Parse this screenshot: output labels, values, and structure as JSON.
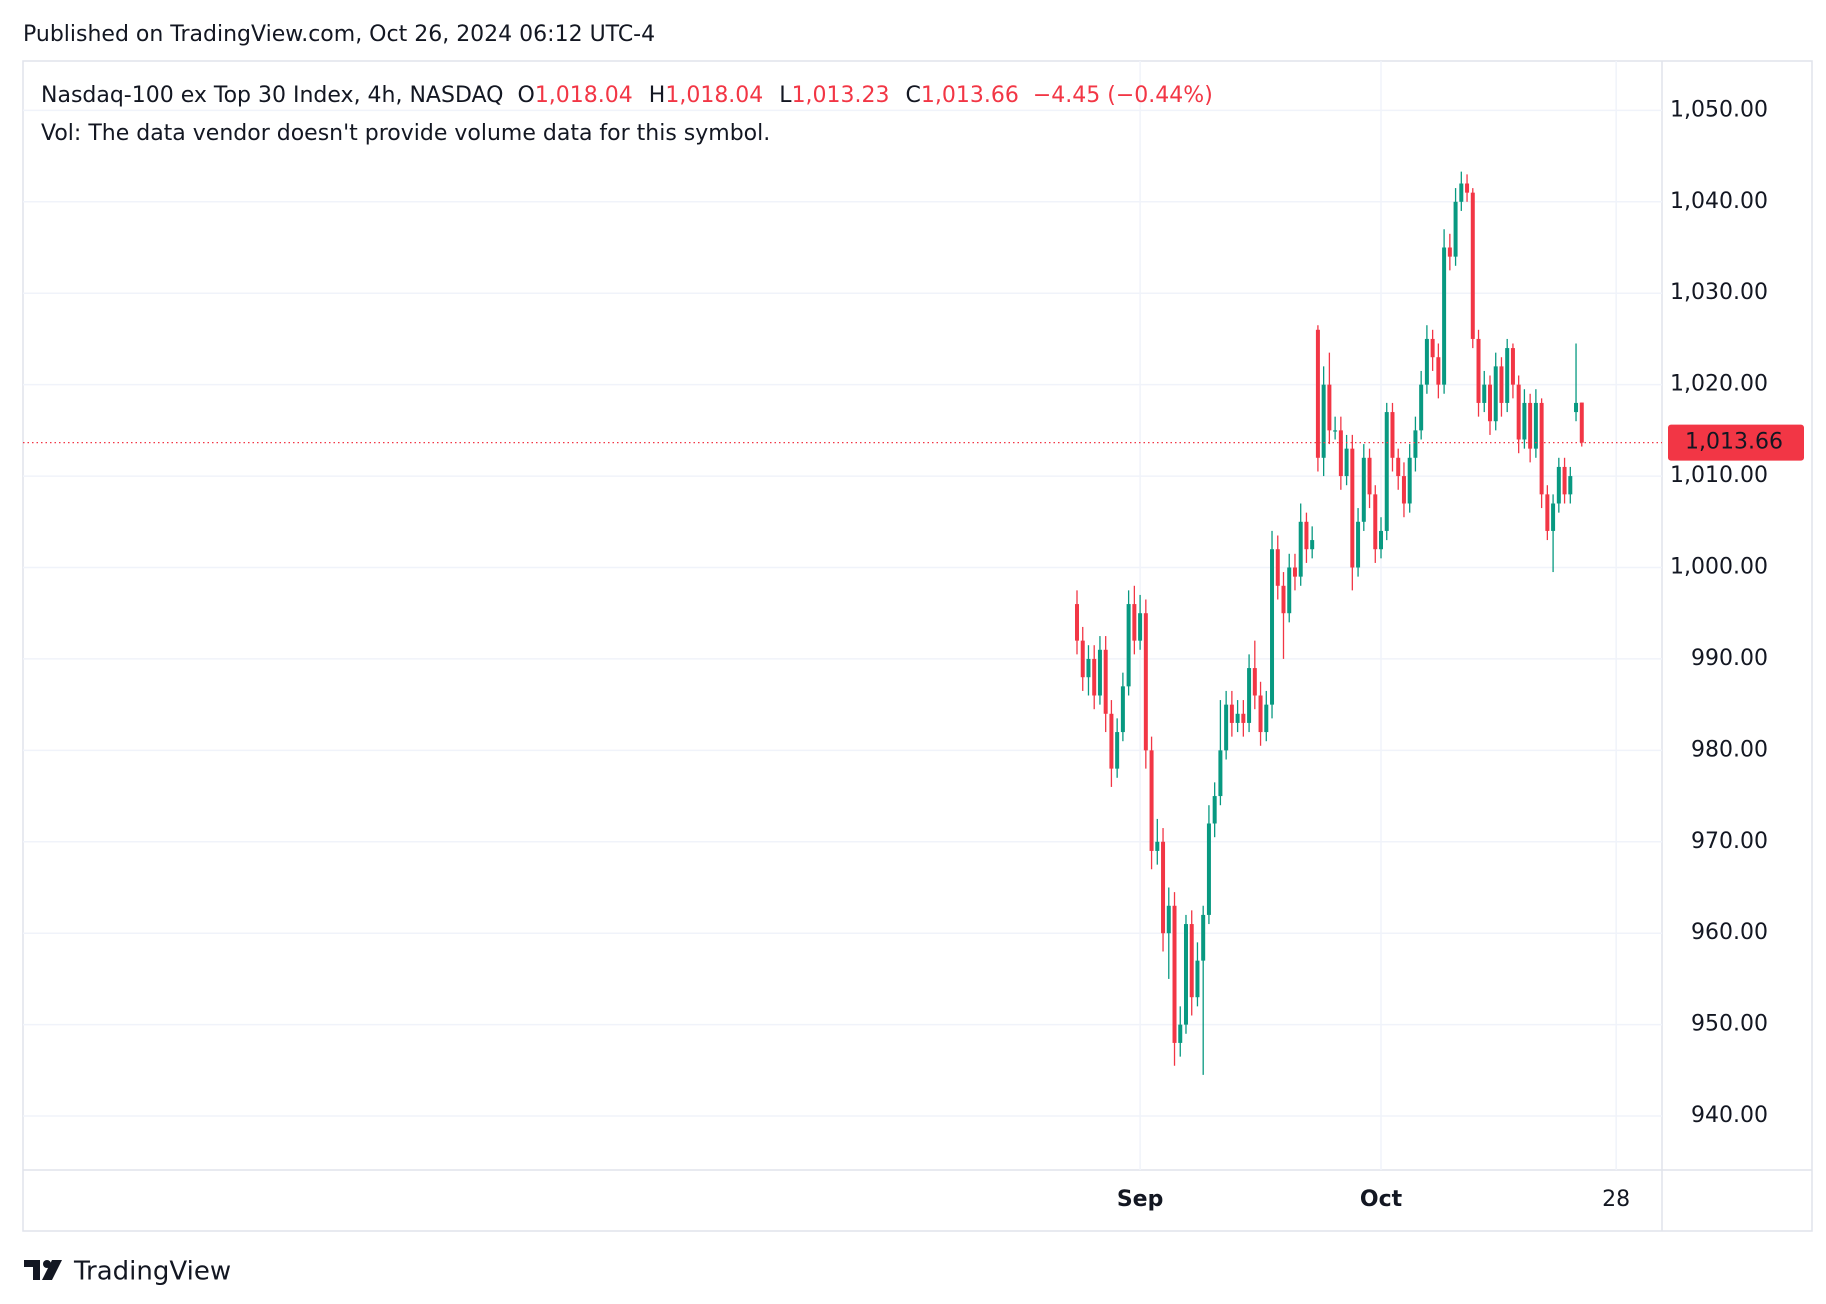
{
  "header": {
    "published": "Published on TradingView.com, Oct 26, 2024 06:12 UTC-4"
  },
  "footer": {
    "brand": "TradingView"
  },
  "chart_data": {
    "type": "candlestick",
    "symbol": "Nasdaq-100 ex Top 30 Index, 4h, NASDAQ",
    "ohlc_legend": [
      {
        "key": "O",
        "value": "1,018.04"
      },
      {
        "key": "H",
        "value": "1,018.04"
      },
      {
        "key": "L",
        "value": "1,013.23"
      },
      {
        "key": "C",
        "value": "1,013.66"
      }
    ],
    "change": "−4.45 (−0.44%)",
    "volume_note": "Vol: The data vendor doesn't provide volume data for this symbol.",
    "up_color": "#089981",
    "down_color": "#f23645",
    "grid": true,
    "price_line": {
      "value": 1013.66,
      "label": "1,013.66"
    },
    "categories": [
      null,
      null,
      null,
      null,
      null,
      null,
      null,
      null,
      null,
      null,
      null,
      "Sep",
      null,
      null,
      null,
      null,
      null,
      null,
      null,
      null,
      null,
      null,
      null,
      null,
      null,
      null,
      null,
      null,
      null,
      null,
      null,
      null,
      null,
      null,
      null,
      null,
      null,
      null,
      null,
      null,
      null,
      null,
      null,
      null,
      null,
      null,
      null,
      null,
      null,
      null,
      null,
      null,
      null,
      "Oct",
      null,
      null,
      null,
      null,
      null,
      null,
      null,
      null,
      null,
      null,
      null,
      null,
      null,
      null,
      null,
      null,
      null,
      null,
      null,
      null,
      null,
      null,
      null,
      null,
      null,
      null,
      null,
      null,
      null,
      null,
      null,
      null,
      null,
      null,
      null,
      null,
      null,
      null,
      null,
      null,
      "28"
    ],
    "open": [
      996,
      992,
      988,
      990,
      986,
      991,
      984,
      978,
      982,
      987,
      996,
      992,
      995,
      980,
      969,
      970,
      960,
      963,
      948,
      950,
      961,
      953,
      957,
      962,
      972,
      975,
      980,
      985,
      983,
      984,
      983,
      989,
      986,
      982,
      985,
      1002,
      998,
      995,
      1000,
      999,
      1005,
      1002,
      1026,
      1012,
      1020,
      1015,
      1015,
      1010,
      1013,
      1000,
      1005,
      1012,
      1008,
      1002,
      1004,
      1017,
      1012,
      1010,
      1007,
      1012,
      1015,
      1020,
      1025,
      1023,
      1020,
      1035,
      1034,
      1040,
      1042,
      1041,
      1025,
      1018,
      1020,
      1016,
      1022,
      1018,
      1024,
      1020,
      1014,
      1018,
      1013,
      1018,
      1008,
      1004,
      1007,
      1011,
      1008,
      1017,
      1018.04,
      null,
      null,
      null,
      null,
      null,
      null
    ],
    "high": [
      997.5,
      993.5,
      991.5,
      991.5,
      992.5,
      992.5,
      985.5,
      983.5,
      988.5,
      997.5,
      998,
      997,
      996.5,
      981.5,
      972.5,
      971.5,
      965,
      964.5,
      952,
      962,
      962.5,
      959,
      963,
      974,
      976.5,
      985.5,
      986.5,
      986.5,
      985.5,
      985.5,
      990.5,
      992,
      987.5,
      986.5,
      1004,
      1003.5,
      999.5,
      1001.5,
      1001.5,
      1007,
      1006,
      1004.5,
      1026.5,
      1022,
      1023.5,
      1016.5,
      1016.5,
      1014.5,
      1014.5,
      1006.5,
      1013.5,
      1013,
      1009,
      1005.5,
      1018,
      1018,
      1013,
      1011.5,
      1013.5,
      1016.5,
      1021.5,
      1026.5,
      1026,
      1024.5,
      1037,
      1036.5,
      1041.5,
      1043.3,
      1043,
      1041.5,
      1026,
      1021.5,
      1021,
      1023.5,
      1023,
      1025,
      1024.5,
      1021,
      1019.5,
      1019,
      1019.5,
      1018.5,
      1009,
      1008,
      1012,
      1012,
      1011,
      1024.5,
      1018.04,
      null,
      null,
      null,
      null,
      null,
      null
    ],
    "low": [
      990.5,
      986.5,
      986,
      984.5,
      985,
      982,
      976,
      977,
      981,
      986,
      990.5,
      991,
      978,
      967,
      967.5,
      958,
      955,
      945.5,
      946.5,
      949,
      951,
      952,
      944.5,
      961,
      970.5,
      974,
      979,
      981.5,
      982,
      981.5,
      982,
      984.5,
      980.5,
      981,
      983.5,
      996.5,
      990,
      994,
      997.5,
      998,
      1000.5,
      1001,
      1010.5,
      1010,
      1013.5,
      1014,
      1008.5,
      1009,
      997.5,
      999,
      1004,
      1006.5,
      1000.5,
      1001,
      1003,
      1010.5,
      1008.5,
      1005.5,
      1006,
      1010.5,
      1014,
      1019,
      1021.5,
      1018.5,
      1019,
      1032.5,
      1033,
      1039,
      1040,
      1024,
      1016.5,
      1017,
      1014.5,
      1015,
      1016.5,
      1017,
      1018.5,
      1012.5,
      1013,
      1011.5,
      1012,
      1006.5,
      1003,
      999.5,
      1006,
      1007,
      1007,
      1016,
      1013.23,
      null,
      null,
      null,
      null,
      null,
      null
    ],
    "close": [
      992,
      988,
      990,
      986,
      991,
      984,
      978,
      982,
      987,
      996,
      992,
      995,
      980,
      969,
      970,
      960,
      963,
      948,
      950,
      961,
      953,
      957,
      962,
      972,
      975,
      980,
      985,
      983,
      984,
      983,
      989,
      986,
      982,
      985,
      1002,
      998,
      995,
      1000,
      999,
      1005,
      1002,
      1003,
      1012,
      1020,
      1015,
      1015,
      1010,
      1013,
      1000,
      1005,
      1012,
      1008,
      1002,
      1004,
      1017,
      1012,
      1010,
      1007,
      1012,
      1015,
      1020,
      1025,
      1023,
      1020,
      1035,
      1034,
      1040,
      1042,
      1041,
      1025,
      1018,
      1020,
      1016,
      1022,
      1018,
      1024,
      1020,
      1014,
      1018,
      1013,
      1018,
      1008,
      1004,
      1007,
      1011,
      1008,
      1010,
      1018,
      1013.66,
      null,
      null,
      null,
      null,
      null,
      null
    ],
    "ylim": [
      934.1,
      1055.4
    ],
    "yticks": [
      {
        "value": 940,
        "label": "940.00"
      },
      {
        "value": 950,
        "label": "950.00"
      },
      {
        "value": 960,
        "label": "960.00"
      },
      {
        "value": 970,
        "label": "970.00"
      },
      {
        "value": 980,
        "label": "980.00"
      },
      {
        "value": 990,
        "label": "990.00"
      },
      {
        "value": 1000,
        "label": "1,000.00"
      },
      {
        "value": 1010,
        "label": "1,010.00"
      },
      {
        "value": 1020,
        "label": "1,020.00"
      },
      {
        "value": 1030,
        "label": "1,030.00"
      },
      {
        "value": 1040,
        "label": "1,040.00"
      },
      {
        "value": 1050,
        "label": "1,050.00"
      }
    ]
  }
}
